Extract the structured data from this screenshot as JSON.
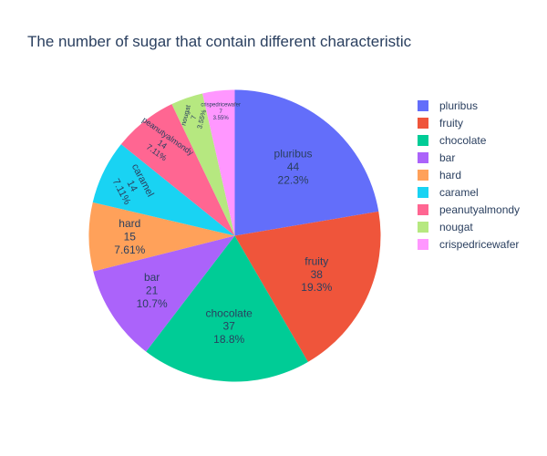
{
  "chart_data": {
    "type": "pie",
    "title": "The number of sugar that contain different characteristic",
    "labels": [
      "pluribus",
      "fruity",
      "chocolate",
      "bar",
      "hard",
      "caramel",
      "peanutyalmondy",
      "nougat",
      "crispedricewafer"
    ],
    "values": [
      44,
      38,
      37,
      21,
      15,
      14,
      14,
      7,
      7
    ],
    "percent_labels": [
      "22.3%",
      "19.3%",
      "18.8%",
      "10.7%",
      "7.61%",
      "7.11%",
      "7.11%",
      "3.55%",
      "3.55%"
    ],
    "colors": [
      "#636efa",
      "#EF553B",
      "#00cc96",
      "#ab63fa",
      "#FFA15A",
      "#19d3f3",
      "#FF6692",
      "#B6E880",
      "#FF97FF"
    ],
    "text_info": "label+value+percent",
    "legend_position": "right",
    "sort": "descending",
    "direction": "clockwise"
  }
}
